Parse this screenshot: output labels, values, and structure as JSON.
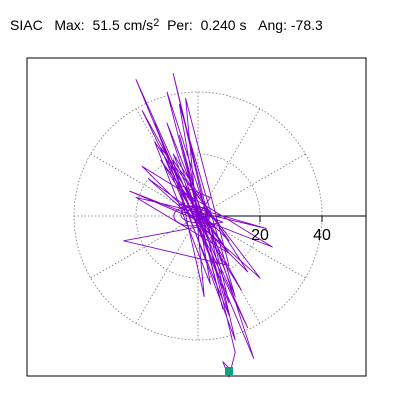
{
  "header": {
    "station": "SIAC",
    "max_label": "Max:",
    "max_value": "51.5 cm/s",
    "max_unit_exp": "2",
    "per_label": "Per:",
    "per_value": "0.240 s",
    "ang_label": "Ang:",
    "ang_value": "-78.3"
  },
  "chart_data": {
    "type": "line",
    "polar_grid": true,
    "radial_ticks": [
      20,
      40
    ],
    "radial_tick_labels": [
      "20",
      "40"
    ],
    "x_range": [
      -55,
      55
    ],
    "y_range": [
      -55,
      52
    ],
    "grid": true,
    "series": [
      {
        "color": "#8000cc",
        "values_xy": [
          [
            0,
            0
          ],
          [
            4,
            6
          ],
          [
            -6,
            10
          ],
          [
            10,
            -12
          ],
          [
            -12,
            18
          ],
          [
            14,
            -24
          ],
          [
            -18,
            34
          ],
          [
            16,
            -36
          ],
          [
            -20,
            44
          ],
          [
            10,
            -28
          ],
          [
            -8,
            46
          ],
          [
            12,
            -40
          ],
          [
            -14,
            30
          ],
          [
            18,
            -46
          ],
          [
            -10,
            40
          ],
          [
            8,
            -30
          ],
          [
            -6,
            26
          ],
          [
            10,
            -32
          ],
          [
            -12,
            22
          ],
          [
            20,
            -20
          ],
          [
            -16,
            12
          ],
          [
            6,
            -4
          ],
          [
            -22,
            8
          ],
          [
            24,
            -10
          ],
          [
            -18,
            16
          ],
          [
            16,
            -18
          ],
          [
            -8,
            20
          ],
          [
            6,
            -14
          ],
          [
            -4,
            10
          ],
          [
            2,
            -6
          ],
          [
            -10,
            30
          ],
          [
            12,
            -26
          ],
          [
            -6,
            36
          ],
          [
            4,
            -22
          ],
          [
            -14,
            24
          ],
          [
            10,
            -12
          ],
          [
            -20,
            6
          ],
          [
            22,
            -4
          ],
          [
            -6,
            4
          ],
          [
            8,
            -2
          ],
          [
            -24,
            -8
          ],
          [
            10,
            -16
          ],
          [
            -4,
            38
          ],
          [
            2,
            -26
          ],
          [
            -8,
            18
          ],
          [
            10,
            -8
          ],
          [
            -2,
            4
          ],
          [
            4,
            -3
          ],
          [
            -3,
            2
          ],
          [
            2,
            -2
          ],
          [
            12,
            -44
          ],
          [
            10,
            -52
          ],
          [
            8,
            -47
          ],
          [
            9,
            -48
          ],
          [
            10,
            -49
          ],
          [
            10,
            -50
          ]
        ]
      }
    ],
    "end_marker": {
      "x": 10,
      "y": -50,
      "color": "#10a080"
    }
  }
}
